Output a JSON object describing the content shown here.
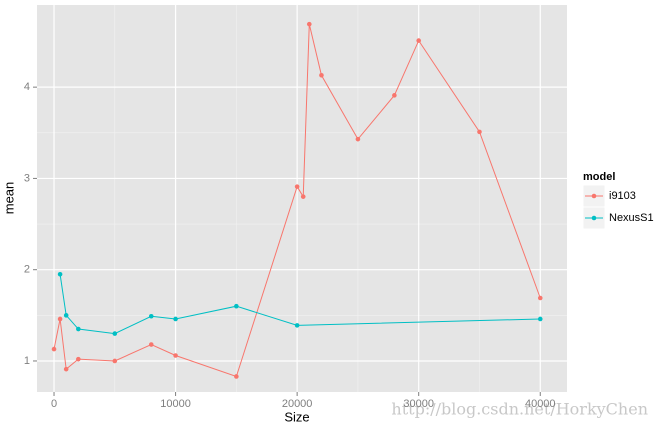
{
  "chart_data": {
    "type": "line",
    "xlabel": "Size",
    "ylabel": "mean",
    "legend_title": "model",
    "xlim": [
      -1400,
      42200
    ],
    "ylim": [
      0.66,
      4.9
    ],
    "xticks": [
      0,
      10000,
      20000,
      30000,
      40000
    ],
    "yticks": [
      1,
      2,
      3,
      4
    ],
    "grid": true,
    "legend": "right",
    "series": [
      {
        "name": "i9103",
        "color": "#f8766d",
        "x": [
          0,
          500,
          1000,
          2000,
          5000,
          8000,
          10000,
          15000,
          20000,
          20500,
          21000,
          22000,
          25000,
          28000,
          30000,
          35000,
          40000
        ],
        "values": [
          1.13,
          1.46,
          0.91,
          1.02,
          1.0,
          1.18,
          1.06,
          0.83,
          2.91,
          2.8,
          4.69,
          4.13,
          3.43,
          3.91,
          4.51,
          3.51,
          1.69
        ]
      },
      {
        "name": "NexusS1",
        "color": "#00bfc4",
        "x": [
          500,
          1000,
          2000,
          5000,
          8000,
          10000,
          15000,
          20000,
          40000
        ],
        "values": [
          1.95,
          1.5,
          1.35,
          1.3,
          1.49,
          1.46,
          1.6,
          1.39,
          1.46
        ]
      }
    ],
    "watermark": "http://blog.csdn.net/HorkyChen"
  }
}
